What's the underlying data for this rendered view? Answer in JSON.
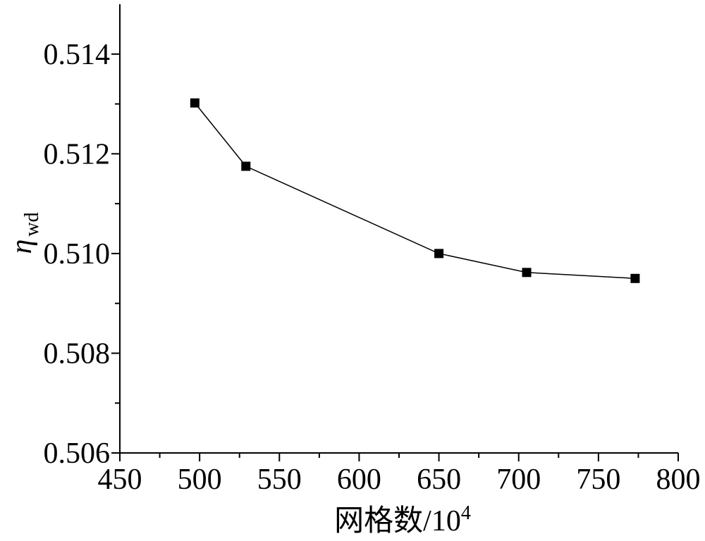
{
  "chart_data": {
    "type": "line",
    "title": "",
    "xlabel": "网格数/10",
    "xlabel_superscript": "4",
    "ylabel_symbol": "η",
    "ylabel_subscript": "wd",
    "xlim": [
      450,
      800
    ],
    "ylim": [
      0.506,
      0.515
    ],
    "x_ticks": [
      450,
      500,
      550,
      600,
      650,
      700,
      750,
      800
    ],
    "x_tick_labels": [
      "450",
      "500",
      "550",
      "600",
      "650",
      "700",
      "750",
      "800"
    ],
    "x_minor_ticks": [
      475,
      525,
      575,
      625,
      675,
      725,
      775
    ],
    "y_ticks": [
      0.506,
      0.508,
      0.51,
      0.512,
      0.514
    ],
    "y_tick_labels": [
      "0.506",
      "0.508",
      "0.510",
      "0.512",
      "0.514"
    ],
    "y_minor_ticks": [
      0.507,
      0.509,
      0.511,
      0.513
    ],
    "grid": false,
    "legend": "none",
    "series": [
      {
        "marker": "square",
        "color": "#000000",
        "x": [
          497,
          529,
          650,
          705,
          773
        ],
        "y": [
          0.51302,
          0.51175,
          0.51,
          0.50962,
          0.5095
        ]
      }
    ]
  }
}
